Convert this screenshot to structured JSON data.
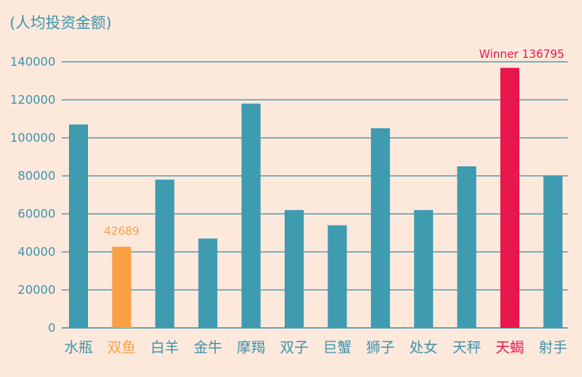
{
  "chart_data": {
    "type": "bar",
    "ylabel": "(人均投资金额)",
    "ylim": [
      0,
      140000
    ],
    "yticks": [
      0,
      20000,
      40000,
      60000,
      80000,
      100000,
      120000,
      140000
    ],
    "grid": true,
    "categories": [
      "水瓶",
      "双鱼",
      "白羊",
      "金牛",
      "摩羯",
      "双子",
      "巨蟹",
      "狮子",
      "处女",
      "天秤",
      "天蝎",
      "射手"
    ],
    "values": [
      107000,
      42689,
      78000,
      47000,
      118000,
      62000,
      54000,
      105000,
      62000,
      85000,
      136795,
      80000
    ],
    "annotations": [
      {
        "category": "双鱼",
        "text": "42689"
      },
      {
        "category": "天蝎",
        "text": "Winner 136795"
      }
    ],
    "colors": {
      "bar": "#3e9bb0",
      "lowest": "#f9a044",
      "highest": "#e8184e",
      "axis_text": "#3e93ab",
      "grid": "#3e93ab",
      "background": "#fde9dc"
    },
    "highlight": {
      "lowest": "双鱼",
      "highest": "天蝎"
    }
  }
}
